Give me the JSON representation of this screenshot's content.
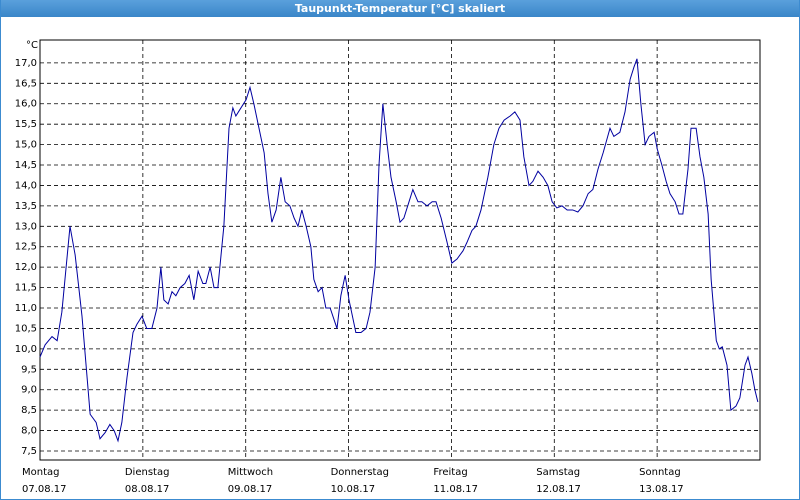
{
  "window_title": "Taupunkt-Temperatur [°C] skaliert",
  "chart_data": {
    "type": "line",
    "y_unit": "°C",
    "xlim": [
      0,
      168
    ],
    "xticks": [
      {
        "value": 0,
        "label": "Montag",
        "date": "07.08.17"
      },
      {
        "value": 24,
        "label": "Dienstag",
        "date": "08.08.17"
      },
      {
        "value": 48,
        "label": "Mittwoch",
        "date": "09.08.17"
      },
      {
        "value": 72,
        "label": "Donnerstag",
        "date": "10.08.17"
      },
      {
        "value": 96,
        "label": "Freitag",
        "date": "11.08.17"
      },
      {
        "value": 120,
        "label": "Samstag",
        "date": "12.08.17"
      },
      {
        "value": 144,
        "label": "Sonntag",
        "date": "13.08.17"
      }
    ],
    "ylim": [
      7.28,
      17.56
    ],
    "yticks": [
      {
        "value": 7.5,
        "label": "7,5"
      },
      {
        "value": 8.0,
        "label": "8,0"
      },
      {
        "value": 8.5,
        "label": "8,5"
      },
      {
        "value": 9.0,
        "label": "9,0"
      },
      {
        "value": 9.5,
        "label": "9,5"
      },
      {
        "value": 10.0,
        "label": "10,0"
      },
      {
        "value": 10.5,
        "label": "10,5"
      },
      {
        "value": 11.0,
        "label": "11,0"
      },
      {
        "value": 11.5,
        "label": "11,5"
      },
      {
        "value": 12.0,
        "label": "12,0"
      },
      {
        "value": 12.5,
        "label": "12,5"
      },
      {
        "value": 13.0,
        "label": "13,0"
      },
      {
        "value": 13.5,
        "label": "13,5"
      },
      {
        "value": 14.0,
        "label": "14,0"
      },
      {
        "value": 14.5,
        "label": "14,5"
      },
      {
        "value": 15.0,
        "label": "15,0"
      },
      {
        "value": 15.5,
        "label": "15,5"
      },
      {
        "value": 16.0,
        "label": "16,0"
      },
      {
        "value": 16.5,
        "label": "16,5"
      },
      {
        "value": 17.0,
        "label": "17,0"
      }
    ],
    "grid": true,
    "x": [
      0,
      1.2,
      2.8,
      4.0,
      5.1,
      7.0,
      8.2,
      9.8,
      11.7,
      13.1,
      14.0,
      15.2,
      16.3,
      17.3,
      18.2,
      19.1,
      20.3,
      21.7,
      22.6,
      23.8,
      24.9,
      26.1,
      27.3,
      28.2,
      28.9,
      29.9,
      30.8,
      31.7,
      32.7,
      33.8,
      34.8,
      35.9,
      36.9,
      38.0,
      38.7,
      39.7,
      40.6,
      41.5,
      42.9,
      44.1,
      45.0,
      45.7,
      46.9,
      48.1,
      49.0,
      49.9,
      51.1,
      52.3,
      53.2,
      54.1,
      55.1,
      56.2,
      57.2,
      58.3,
      59.3,
      60.2,
      61.1,
      62.1,
      63.2,
      63.9,
      64.9,
      65.8,
      66.7,
      67.7,
      69.3,
      70.2,
      71.2,
      72.1,
      73.7,
      74.9,
      76.1,
      77.0,
      78.2,
      79.1,
      80.0,
      81.0,
      81.9,
      83.1,
      84.0,
      84.9,
      86.1,
      87.0,
      88.2,
      89.1,
      90.3,
      91.5,
      92.4,
      93.6,
      95.0,
      96.1,
      97.3,
      98.7,
      99.6,
      100.8,
      101.7,
      102.9,
      104.5,
      105.9,
      107.1,
      108.3,
      109.7,
      110.8,
      112.0,
      112.9,
      114.1,
      115.0,
      116.2,
      117.4,
      118.5,
      119.5,
      120.6,
      121.8,
      123.0,
      124.3,
      125.5,
      126.7,
      127.9,
      129.0,
      130.2,
      131.4,
      133.0,
      133.9,
      135.3,
      136.5,
      137.7,
      138.6,
      139.3,
      140.2,
      141.2,
      142.1,
      143.3,
      144.0,
      145.1,
      146.1,
      147.0,
      148.2,
      149.1,
      150.0,
      151.2,
      151.9,
      153.1,
      154.0,
      154.9,
      155.9,
      156.6,
      157.8,
      158.5,
      159.2,
      160.3,
      161.2,
      162.4,
      163.3,
      164.5,
      165.2,
      166.1,
      166.8,
      167.5
    ],
    "series": [
      {
        "color": "#0000a0",
        "values": [
          9.8,
          10.1,
          10.3,
          10.2,
          10.9,
          13.0,
          12.3,
          10.8,
          8.4,
          8.2,
          7.8,
          7.95,
          8.15,
          8.0,
          7.75,
          8.2,
          9.3,
          10.4,
          10.6,
          10.8,
          10.5,
          10.5,
          11.0,
          12.0,
          11.2,
          11.1,
          11.4,
          11.3,
          11.5,
          11.6,
          11.8,
          11.2,
          11.9,
          11.6,
          11.6,
          12.0,
          11.5,
          11.5,
          13.0,
          15.4,
          15.9,
          15.7,
          15.9,
          16.1,
          16.4,
          16.0,
          15.4,
          14.8,
          13.8,
          13.1,
          13.4,
          14.2,
          13.6,
          13.5,
          13.2,
          13.0,
          13.4,
          13.0,
          12.5,
          11.7,
          11.4,
          11.5,
          11.0,
          11.0,
          10.5,
          11.3,
          11.8,
          11.2,
          10.4,
          10.4,
          10.5,
          10.9,
          12.0,
          14.5,
          16.0,
          15.0,
          14.2,
          13.6,
          13.1,
          13.2,
          13.6,
          13.9,
          13.6,
          13.6,
          13.5,
          13.6,
          13.6,
          13.2,
          12.6,
          12.1,
          12.2,
          12.4,
          12.6,
          12.9,
          13.0,
          13.4,
          14.2,
          15.0,
          15.4,
          15.6,
          15.7,
          15.8,
          15.6,
          14.7,
          14.0,
          14.1,
          14.35,
          14.2,
          14.0,
          13.6,
          13.45,
          13.5,
          13.4,
          13.4,
          13.35,
          13.5,
          13.8,
          13.9,
          14.4,
          14.8,
          15.4,
          15.2,
          15.3,
          15.8,
          16.6,
          16.9,
          17.1,
          16.0,
          15.0,
          15.2,
          15.3,
          14.9,
          14.5,
          14.1,
          13.8,
          13.6,
          13.3,
          13.3,
          14.4,
          15.4,
          15.4,
          14.7,
          14.2,
          13.3,
          11.7,
          10.2,
          10.0,
          10.05,
          9.6,
          8.5,
          8.6,
          8.8,
          9.6,
          9.8,
          9.4,
          9.0,
          8.7
        ]
      }
    ]
  }
}
